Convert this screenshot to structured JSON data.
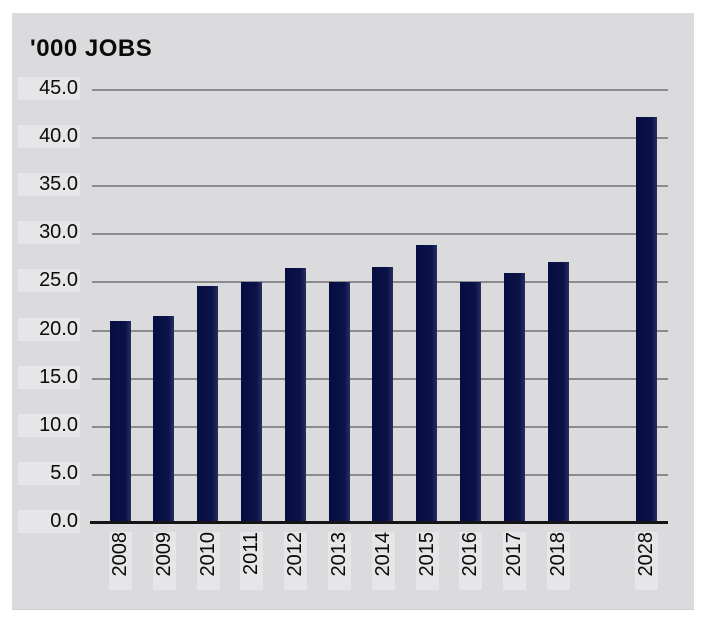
{
  "title": "'000 JOBS",
  "chart_data": {
    "type": "bar",
    "title": "'000 JOBS",
    "categories": [
      "2008",
      "2009",
      "2010",
      "2011",
      "2012",
      "2013",
      "2014",
      "2015",
      "2016",
      "2017",
      "2018",
      "2028"
    ],
    "values": [
      21.0,
      21.5,
      24.6,
      25.0,
      26.5,
      25.0,
      26.6,
      28.9,
      25.0,
      26.0,
      27.1,
      42.2
    ],
    "ylim": [
      0,
      45
    ],
    "ytick_step": 5,
    "ytick_labels": [
      "0.0",
      "5.0",
      "10.0",
      "15.0",
      "20.0",
      "25.0",
      "30.0",
      "35.0",
      "40.0",
      "45.0"
    ],
    "xlabel": "",
    "ylabel": "'000 JOBS",
    "grid": true,
    "legend": false,
    "notes": "gap between 2018 and 2028 bars (skipped decade)"
  },
  "colors": {
    "bar": "#0b1247",
    "bar_edge_light": "#272e60",
    "panel_background": "#dbdbde",
    "page_background": "#ffffff",
    "gridline": "#8b8b8f",
    "axis_line": "#141414",
    "text": "#0a0a0a"
  }
}
